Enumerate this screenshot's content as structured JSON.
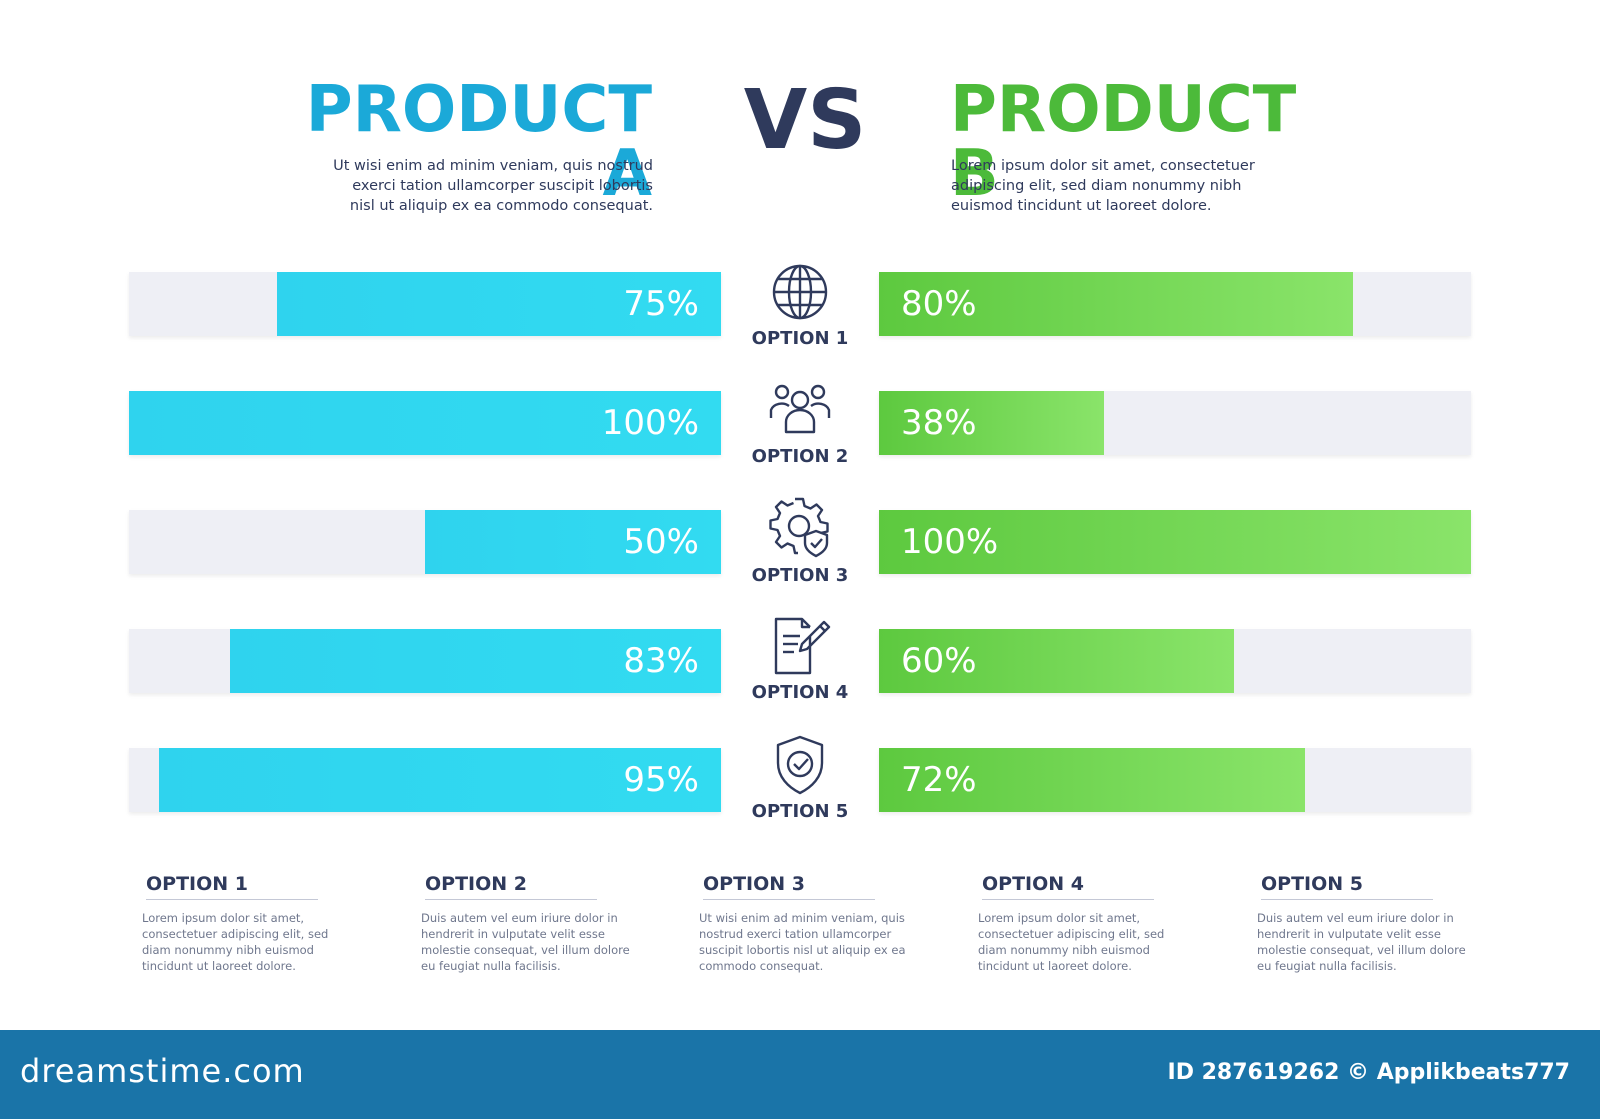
{
  "header": {
    "product_a": "PRODUCT A",
    "vs": "VS",
    "product_b": "PRODUCT B",
    "desc_a": "Ut wisi enim ad minim veniam, quis nostrud exerci tation ullamcorper suscipit lobortis nisl ut aliquip ex ea commodo consequat.",
    "desc_b": "Lorem ipsum dolor sit amet, consectetuer adipiscing elit, sed diam nonummy nibh euismod tincidunt ut laoreet dolore."
  },
  "colors": {
    "product_a": "#2fd3ee",
    "product_b": "#5dc93f",
    "track": "#eeeff5",
    "text": "#2f3a5c"
  },
  "chart_data": {
    "type": "bar",
    "categories": [
      "OPTION 1",
      "OPTION 2",
      "OPTION 3",
      "OPTION 4",
      "OPTION 5"
    ],
    "series": [
      {
        "name": "PRODUCT A",
        "values": [
          75,
          100,
          50,
          83,
          95
        ],
        "labels": [
          "75%",
          "100%",
          "50%",
          "83%",
          "95%"
        ]
      },
      {
        "name": "PRODUCT B",
        "values": [
          80,
          38,
          100,
          60,
          72
        ],
        "labels": [
          "80%",
          "38%",
          "100%",
          "60%",
          "72%"
        ]
      }
    ],
    "ylim": [
      0,
      100
    ]
  },
  "options": [
    {
      "label": "OPTION 1",
      "icon": "globe-icon"
    },
    {
      "label": "OPTION 2",
      "icon": "people-icon"
    },
    {
      "label": "OPTION 3",
      "icon": "gear-shield-icon"
    },
    {
      "label": "OPTION 4",
      "icon": "document-pen-icon"
    },
    {
      "label": "OPTION 5",
      "icon": "shield-check-icon"
    }
  ],
  "columns": [
    {
      "title": "OPTION 1",
      "text": "Lorem ipsum dolor sit amet, consectetuer adipiscing elit, sed diam nonummy nibh euismod tincidunt ut laoreet dolore."
    },
    {
      "title": "OPTION 2",
      "text": "Duis autem vel eum iriure dolor in hendrerit in vulputate velit esse molestie consequat, vel illum dolore eu feugiat nulla facilisis."
    },
    {
      "title": "OPTION 3",
      "text": "Ut wisi enim ad minim veniam, quis nostrud exerci tation ullamcorper suscipit lobortis nisl ut aliquip ex ea commodo consequat."
    },
    {
      "title": "OPTION 4",
      "text": "Lorem ipsum dolor sit amet, consectetuer adipiscing elit, sed diam nonummy nibh euismod tincidunt ut laoreet dolore."
    },
    {
      "title": "OPTION 5",
      "text": "Duis autem vel eum iriure dolor in hendrerit in vulputate velit esse molestie consequat, vel illum dolore eu feugiat nulla facilisis."
    }
  ],
  "footer": {
    "logo": "dreamstime.com",
    "id_text": "ID 287619262 © Applikbeats777"
  }
}
